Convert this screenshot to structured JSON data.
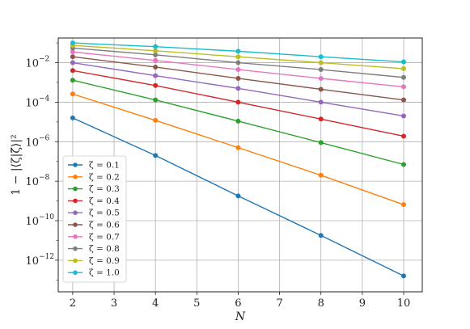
{
  "chart_data": {
    "type": "line",
    "title": "",
    "xlabel": "N",
    "ylabel": "1 − |⟨ζ|ζ̃⟩|²",
    "x": [
      2,
      4,
      6,
      8,
      10
    ],
    "xlim": [
      1.65,
      10.45
    ],
    "xticks": [
      "2",
      "3",
      "4",
      "5",
      "6",
      "7",
      "8",
      "9",
      "10"
    ],
    "yscale": "log",
    "ylim_log10": [
      -13.6,
      -0.75
    ],
    "yticks": [
      {
        "base": "10",
        "exp": "−12",
        "log": -12
      },
      {
        "base": "10",
        "exp": "−10",
        "log": -10
      },
      {
        "base": "10",
        "exp": "−8",
        "log": -8
      },
      {
        "base": "10",
        "exp": "−6",
        "log": -6
      },
      {
        "base": "10",
        "exp": "−4",
        "log": -4
      },
      {
        "base": "10",
        "exp": "−2",
        "log": -2
      }
    ],
    "grid": true,
    "legend_position": "bottom-left",
    "series": [
      {
        "name": "ζ = 0.1",
        "color": "#1f77b4",
        "values": [
          1.6e-05,
          2e-07,
          1.8e-09,
          1.8e-11,
          1.6e-13
        ]
      },
      {
        "name": "ζ = 0.2",
        "color": "#ff7f0e",
        "values": [
          0.00026,
          1.2e-05,
          5e-07,
          2e-08,
          6.5e-10
        ]
      },
      {
        "name": "ζ = 0.3",
        "color": "#2ca02c",
        "values": [
          0.0013,
          0.00013,
          1.1e-05,
          9e-07,
          7e-08
        ]
      },
      {
        "name": "ζ = 0.4",
        "color": "#d62728",
        "values": [
          0.004,
          0.0007,
          0.0001,
          1.4e-05,
          1.9e-06
        ]
      },
      {
        "name": "ζ = 0.5",
        "color": "#9467bd",
        "values": [
          0.01,
          0.0022,
          0.0005,
          0.0001,
          2e-05
        ]
      },
      {
        "name": "ζ = 0.6",
        "color": "#8c564b",
        "values": [
          0.02,
          0.006,
          0.0016,
          0.00045,
          0.00013
        ]
      },
      {
        "name": "ζ = 0.7",
        "color": "#e377c2",
        "values": [
          0.035,
          0.013,
          0.0045,
          0.0016,
          0.0006
        ]
      },
      {
        "name": "ζ = 0.8",
        "color": "#7f7f7f",
        "values": [
          0.055,
          0.025,
          0.01,
          0.0045,
          0.0018
        ]
      },
      {
        "name": "ζ = 0.9",
        "color": "#bcbd22",
        "values": [
          0.075,
          0.04,
          0.02,
          0.01,
          0.005
        ]
      },
      {
        "name": "ζ = 1.0",
        "color": "#17becf",
        "values": [
          0.1,
          0.065,
          0.038,
          0.02,
          0.011
        ]
      }
    ]
  }
}
